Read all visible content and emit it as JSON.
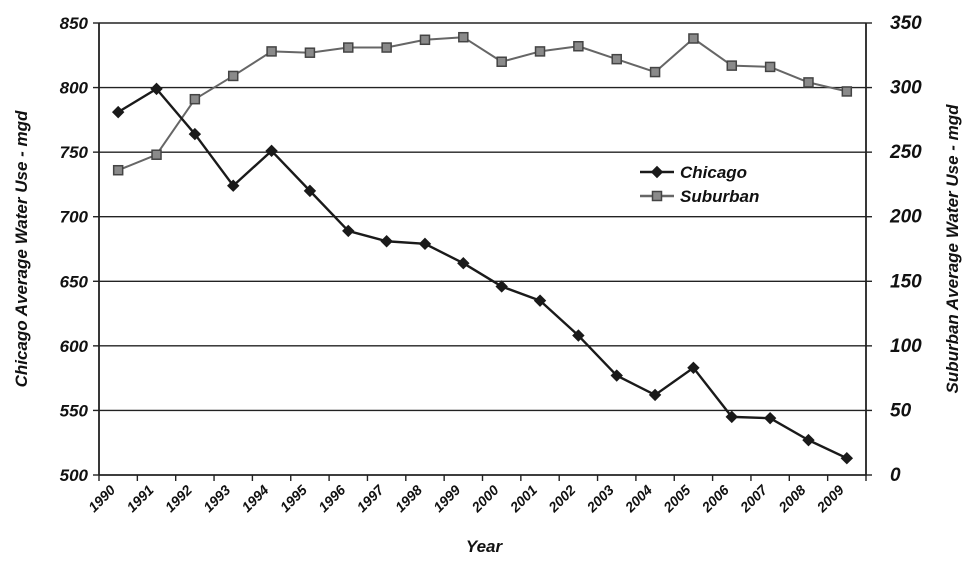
{
  "chart_data": {
    "type": "line",
    "xlabel": "Year",
    "ylabel_left": "Chicago Average Water Use - mgd",
    "ylabel_right": "Suburban  Average Water Use - mgd",
    "ylim_left": [
      500,
      850
    ],
    "ylim_right": [
      0,
      350
    ],
    "yticks_left": [
      500,
      550,
      600,
      650,
      700,
      750,
      800,
      850
    ],
    "yticks_right": [
      0,
      50,
      100,
      150,
      200,
      250,
      300,
      350
    ],
    "grid": true,
    "legend_position": "center-right",
    "categories": [
      "1990",
      "1991",
      "1992",
      "1993",
      "1994",
      "1995",
      "1996",
      "1997",
      "1998",
      "1999",
      "2000",
      "2001",
      "2002",
      "2003",
      "2004",
      "2005",
      "2006",
      "2007",
      "2008",
      "2009"
    ],
    "series": [
      {
        "name": "Chicago",
        "axis": "left",
        "marker": "diamond",
        "color": "#1a1a1a",
        "values": [
          781,
          799,
          764,
          724,
          751,
          720,
          689,
          681,
          679,
          664,
          646,
          635,
          608,
          577,
          562,
          583,
          545,
          544,
          527,
          513
        ]
      },
      {
        "name": "Suburban",
        "axis": "right",
        "marker": "square",
        "color": "#666666",
        "values": [
          236,
          248,
          291,
          309,
          328,
          327,
          331,
          331,
          337,
          339,
          320,
          328,
          332,
          322,
          312,
          338,
          317,
          316,
          304,
          297
        ]
      }
    ]
  }
}
